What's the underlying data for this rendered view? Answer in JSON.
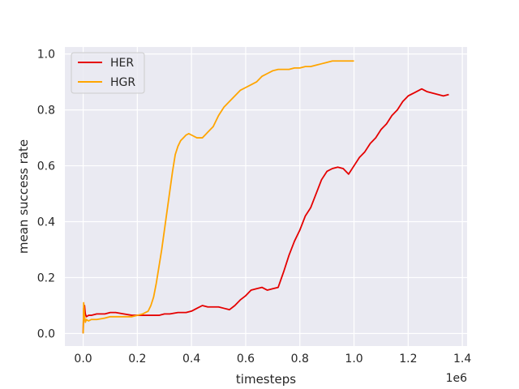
{
  "chart_data": {
    "type": "line",
    "title": "",
    "xlabel": "timesteps",
    "ylabel": "mean success rate",
    "x_offset_label": "1e6",
    "xlim": [
      -0.0675,
      1.4175
    ],
    "ylim": [
      -0.045,
      1.025
    ],
    "x_ticks": [
      0.0,
      0.2,
      0.4,
      0.6,
      0.8,
      1.0,
      1.2,
      1.4
    ],
    "x_tick_labels": [
      "0.0",
      "0.2",
      "0.4",
      "0.6",
      "0.8",
      "1.0",
      "1.2",
      "1.4"
    ],
    "y_ticks": [
      0.0,
      0.2,
      0.4,
      0.6,
      0.8,
      1.0
    ],
    "y_tick_labels": [
      "0.0",
      "0.2",
      "0.4",
      "0.6",
      "0.8",
      "1.0"
    ],
    "grid": true,
    "legend_position": "top-left",
    "colors": {
      "background": "#eaeaf2",
      "grid": "#ffffff"
    },
    "series": [
      {
        "name": "HER",
        "color": "#e50000",
        "x": [
          0.0,
          0.002,
          0.005,
          0.008,
          0.012,
          0.02,
          0.03,
          0.05,
          0.08,
          0.1,
          0.12,
          0.15,
          0.18,
          0.2,
          0.22,
          0.25,
          0.28,
          0.3,
          0.32,
          0.35,
          0.38,
          0.4,
          0.42,
          0.44,
          0.46,
          0.48,
          0.5,
          0.52,
          0.54,
          0.56,
          0.58,
          0.6,
          0.62,
          0.64,
          0.66,
          0.68,
          0.7,
          0.72,
          0.74,
          0.76,
          0.78,
          0.8,
          0.82,
          0.84,
          0.86,
          0.88,
          0.9,
          0.92,
          0.94,
          0.96,
          0.98,
          1.0,
          1.02,
          1.04,
          1.06,
          1.08,
          1.1,
          1.12,
          1.14,
          1.16,
          1.18,
          1.2,
          1.22,
          1.24,
          1.25,
          1.27,
          1.29,
          1.31,
          1.33,
          1.35
        ],
        "values": [
          0.0,
          0.09,
          0.1,
          0.07,
          0.06,
          0.065,
          0.065,
          0.07,
          0.07,
          0.075,
          0.075,
          0.07,
          0.065,
          0.065,
          0.065,
          0.065,
          0.065,
          0.07,
          0.07,
          0.075,
          0.075,
          0.08,
          0.09,
          0.1,
          0.095,
          0.095,
          0.095,
          0.09,
          0.085,
          0.1,
          0.12,
          0.135,
          0.155,
          0.16,
          0.165,
          0.155,
          0.16,
          0.165,
          0.22,
          0.28,
          0.33,
          0.37,
          0.42,
          0.45,
          0.5,
          0.55,
          0.58,
          0.59,
          0.595,
          0.59,
          0.57,
          0.6,
          0.63,
          0.65,
          0.68,
          0.7,
          0.73,
          0.75,
          0.78,
          0.8,
          0.83,
          0.85,
          0.86,
          0.87,
          0.875,
          0.865,
          0.86,
          0.855,
          0.85,
          0.855
        ]
      },
      {
        "name": "HGR",
        "color": "#ffa500",
        "x": [
          0.0,
          0.002,
          0.004,
          0.008,
          0.012,
          0.02,
          0.03,
          0.05,
          0.08,
          0.1,
          0.12,
          0.15,
          0.18,
          0.2,
          0.22,
          0.24,
          0.25,
          0.26,
          0.27,
          0.28,
          0.29,
          0.3,
          0.31,
          0.32,
          0.33,
          0.34,
          0.35,
          0.36,
          0.37,
          0.38,
          0.39,
          0.4,
          0.42,
          0.44,
          0.46,
          0.48,
          0.5,
          0.52,
          0.54,
          0.56,
          0.58,
          0.6,
          0.62,
          0.64,
          0.66,
          0.68,
          0.7,
          0.72,
          0.74,
          0.76,
          0.78,
          0.8,
          0.82,
          0.84,
          0.86,
          0.88,
          0.9,
          0.92,
          0.94,
          0.96,
          0.98,
          1.0
        ],
        "values": [
          0.0,
          0.11,
          0.07,
          0.04,
          0.05,
          0.045,
          0.05,
          0.05,
          0.055,
          0.06,
          0.06,
          0.06,
          0.06,
          0.065,
          0.07,
          0.08,
          0.1,
          0.13,
          0.18,
          0.24,
          0.3,
          0.37,
          0.44,
          0.51,
          0.58,
          0.64,
          0.67,
          0.69,
          0.7,
          0.71,
          0.715,
          0.71,
          0.7,
          0.7,
          0.72,
          0.74,
          0.78,
          0.81,
          0.83,
          0.85,
          0.87,
          0.88,
          0.89,
          0.9,
          0.92,
          0.93,
          0.94,
          0.945,
          0.945,
          0.945,
          0.95,
          0.95,
          0.955,
          0.955,
          0.96,
          0.965,
          0.97,
          0.975,
          0.975,
          0.975,
          0.975,
          0.975
        ]
      }
    ]
  }
}
